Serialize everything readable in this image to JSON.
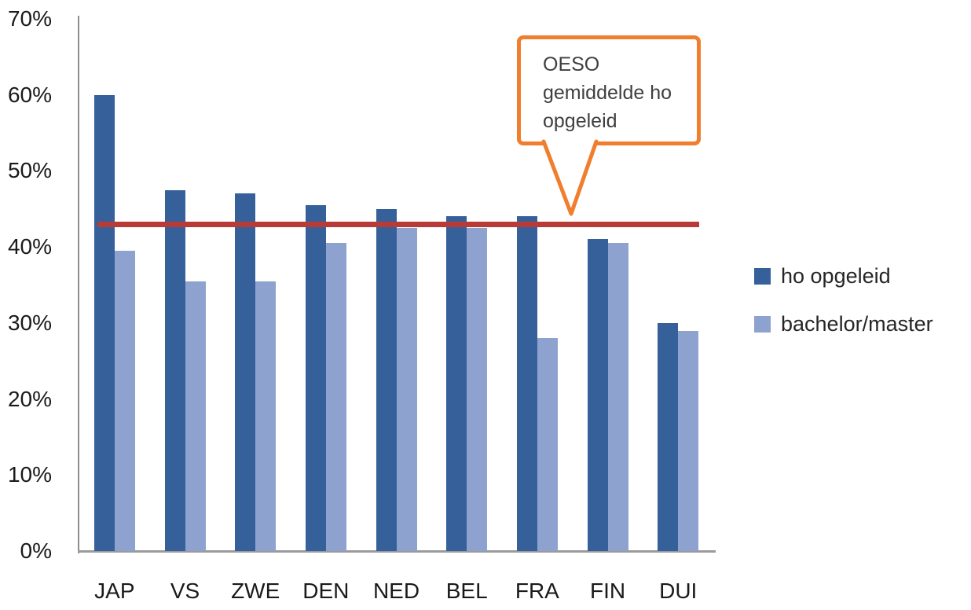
{
  "chart_data": {
    "type": "bar",
    "title": "",
    "categories": [
      "JAP",
      "VS",
      "ZWE",
      "DEN",
      "NED",
      "BEL",
      "FRA",
      "FIN",
      "DUI"
    ],
    "series": [
      {
        "name": "ho opgeleid",
        "color": "#36609A",
        "values": [
          60,
          47.5,
          47,
          45.5,
          45,
          44,
          44,
          41,
          30
        ]
      },
      {
        "name": "bachelor/master",
        "color": "#8DA2CE",
        "values": [
          39.5,
          35.5,
          35.5,
          40.5,
          42.5,
          42.5,
          28,
          40.5,
          29
        ]
      }
    ],
    "y_axis": {
      "min": 0,
      "max": 70,
      "tick_step": 10,
      "tick_labels": [
        "0%",
        "10%",
        "20%",
        "30%",
        "40%",
        "50%",
        "60%",
        "70%"
      ],
      "unit": "%"
    },
    "reference_line": {
      "value": 43,
      "color": "#B73B36",
      "meaning": "OESO gemiddelde ho opgeleid"
    },
    "annotation": {
      "text": "OESO gemiddelde ho opgeleid",
      "border_color": "#F07E2E"
    },
    "legend_position": "right",
    "grid": false,
    "axis_color": "#8E8E8E"
  }
}
